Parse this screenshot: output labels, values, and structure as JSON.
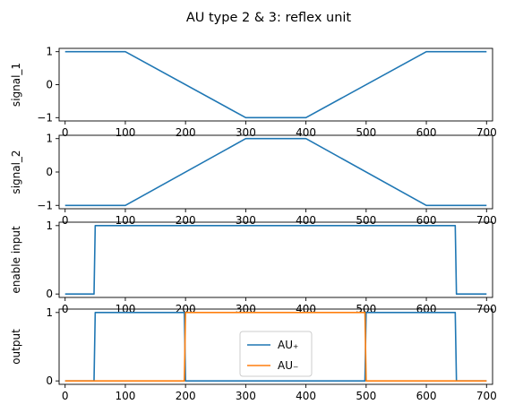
{
  "chart_data": {
    "title": "AU type 2 & 3: reflex unit",
    "xlim": [
      -10,
      710
    ],
    "xticks": [
      0,
      100,
      200,
      300,
      400,
      500,
      600,
      700
    ],
    "panels": [
      {
        "type": "line",
        "ylabel": "signal_1",
        "ylim": [
          -1.1,
          1.1
        ],
        "yticks": [
          -1,
          0,
          1
        ],
        "grid": false,
        "series": [
          {
            "color": "#1f77b4",
            "x": [
              0,
              100,
              300,
              400,
              600,
              700
            ],
            "y": [
              1,
              1,
              -1,
              -1,
              1,
              1
            ]
          }
        ]
      },
      {
        "type": "line",
        "ylabel": "signal_2",
        "ylim": [
          -1.1,
          1.1
        ],
        "yticks": [
          -1,
          0,
          1
        ],
        "grid": false,
        "series": [
          {
            "color": "#1f77b4",
            "x": [
              0,
              100,
              300,
              400,
              600,
              700
            ],
            "y": [
              -1,
              -1,
              1,
              1,
              -1,
              -1
            ]
          }
        ]
      },
      {
        "type": "line",
        "ylabel": "enable input",
        "ylim": [
          -0.05,
          1.05
        ],
        "yticks": [
          0,
          1
        ],
        "grid": false,
        "series": [
          {
            "color": "#1f77b4",
            "x": [
              0,
              48,
              50,
              648,
              650,
              700
            ],
            "y": [
              0,
              0,
              1,
              1,
              0,
              0
            ]
          }
        ]
      },
      {
        "type": "line",
        "ylabel": "output",
        "ylim": [
          -0.05,
          1.05
        ],
        "yticks": [
          0,
          1
        ],
        "grid": false,
        "legend_position": "center",
        "series": [
          {
            "name": "AU₊",
            "color": "#1f77b4",
            "x": [
              0,
              48,
              50,
              198,
              200,
              498,
              500,
              648,
              650,
              700
            ],
            "y": [
              0,
              0,
              1,
              1,
              0,
              0,
              1,
              1,
              0,
              0
            ]
          },
          {
            "name": "AU₋",
            "color": "#ff7f0e",
            "x": [
              0,
              198,
              200,
              498,
              500,
              700
            ],
            "y": [
              0,
              0,
              1,
              1,
              0,
              0
            ]
          }
        ]
      }
    ]
  }
}
